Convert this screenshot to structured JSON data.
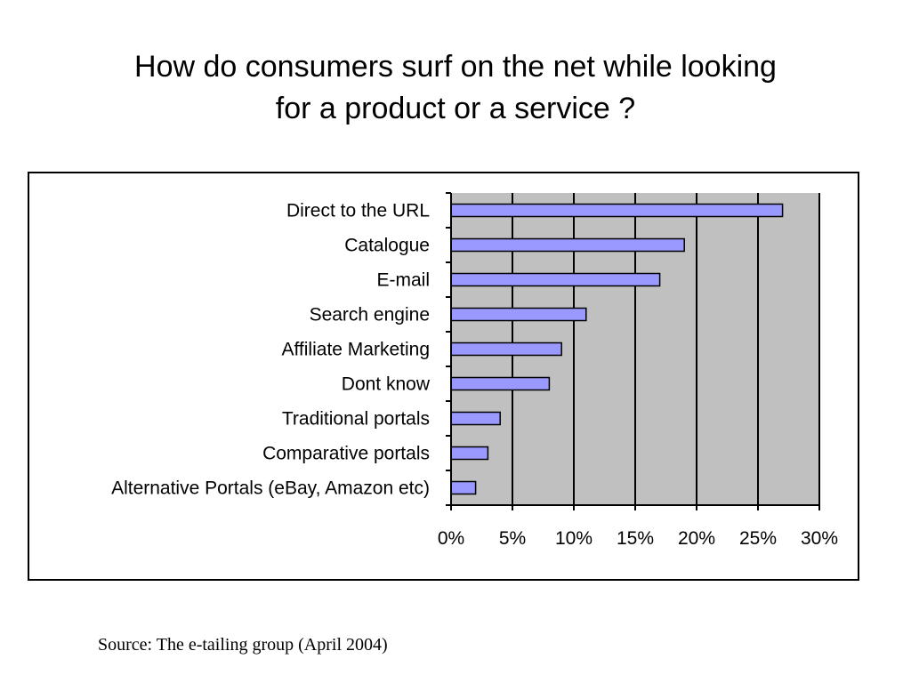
{
  "slide": {
    "title_line1": "How do consumers surf on the net while looking",
    "title_line2": "for a product or a service ?",
    "source": "Source: The e-tailing group (April 2004)"
  },
  "chart_data": {
    "type": "bar",
    "orientation": "horizontal",
    "categories": [
      "Direct to the URL",
      "Catalogue",
      "E-mail",
      "Search engine",
      "Affiliate Marketing",
      "Dont know",
      "Traditional portals",
      "Comparative portals",
      "Alternative Portals (eBay, Amazon etc)"
    ],
    "values": [
      27,
      19,
      17,
      11,
      9,
      8,
      4,
      3,
      2
    ],
    "xlim": [
      0,
      30
    ],
    "x_ticks": [
      0,
      5,
      10,
      15,
      20,
      25,
      30
    ],
    "x_tick_labels": [
      "0%",
      "5%",
      "10%",
      "15%",
      "20%",
      "25%",
      "30%"
    ],
    "grid": "vertical",
    "legend": "none",
    "colors": {
      "bar_fill": "#9999ff",
      "bar_stroke": "#000000",
      "plot_background": "#c0c0c0",
      "gridline": "#000000"
    }
  }
}
